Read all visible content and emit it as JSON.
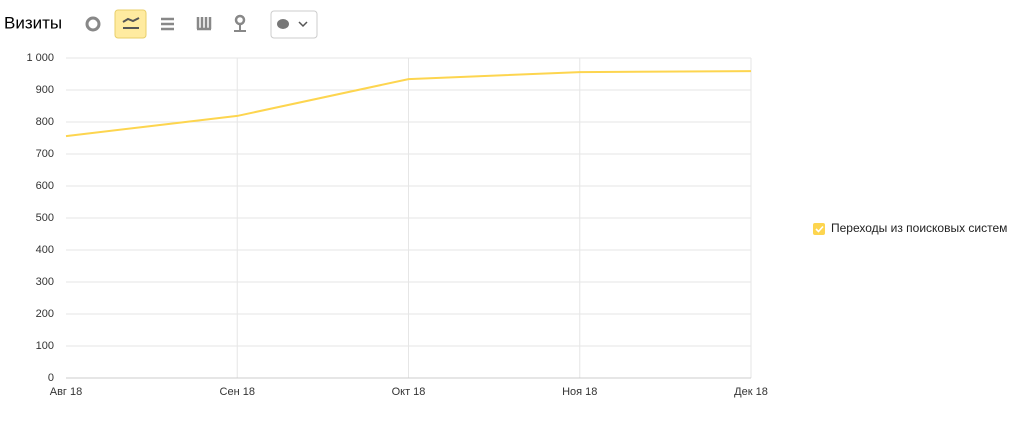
{
  "chart_data": {
    "type": "line",
    "title": "Визиты",
    "categories": [
      "Авг 18",
      "Сен 18",
      "Окт 18",
      "Ноя 18",
      "Дек 18"
    ],
    "series": [
      {
        "name": "Переходы из поисковых систем",
        "color": "#fdd54f",
        "values": [
          756,
          819,
          934,
          956,
          959
        ]
      }
    ],
    "ylim": [
      0,
      1000
    ],
    "yticks": [
      0,
      100,
      200,
      300,
      400,
      500,
      600,
      700,
      800,
      900,
      {
        "value": 1000,
        "label": "1 000"
      }
    ],
    "grid": true,
    "legend": "right"
  }
}
